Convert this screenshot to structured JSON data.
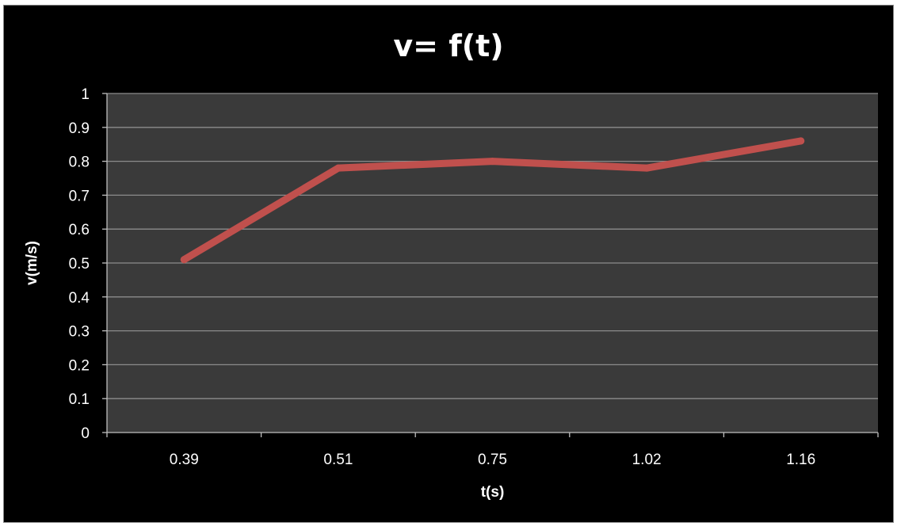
{
  "chart_data": {
    "type": "line",
    "title": "v= f(t)",
    "xlabel": "t(s)",
    "ylabel": "v(m/s)",
    "categories": [
      "0.39",
      "0.51",
      "0.75",
      "1.02",
      "1.16"
    ],
    "series": [
      {
        "values": [
          0.51,
          0.78,
          0.8,
          0.78,
          0.86
        ],
        "color": "#c0504d"
      }
    ],
    "ylim": [
      0,
      1
    ],
    "yticks": [
      "0",
      "0.1",
      "0.2",
      "0.3",
      "0.4",
      "0.5",
      "0.6",
      "0.7",
      "0.8",
      "0.9",
      "1"
    ],
    "grid": true,
    "legend": "none",
    "colors": {
      "background": "#000000",
      "plot_area": "#3a3a3a",
      "gridline": "#8c8c8c",
      "text": "#ffffff"
    }
  }
}
